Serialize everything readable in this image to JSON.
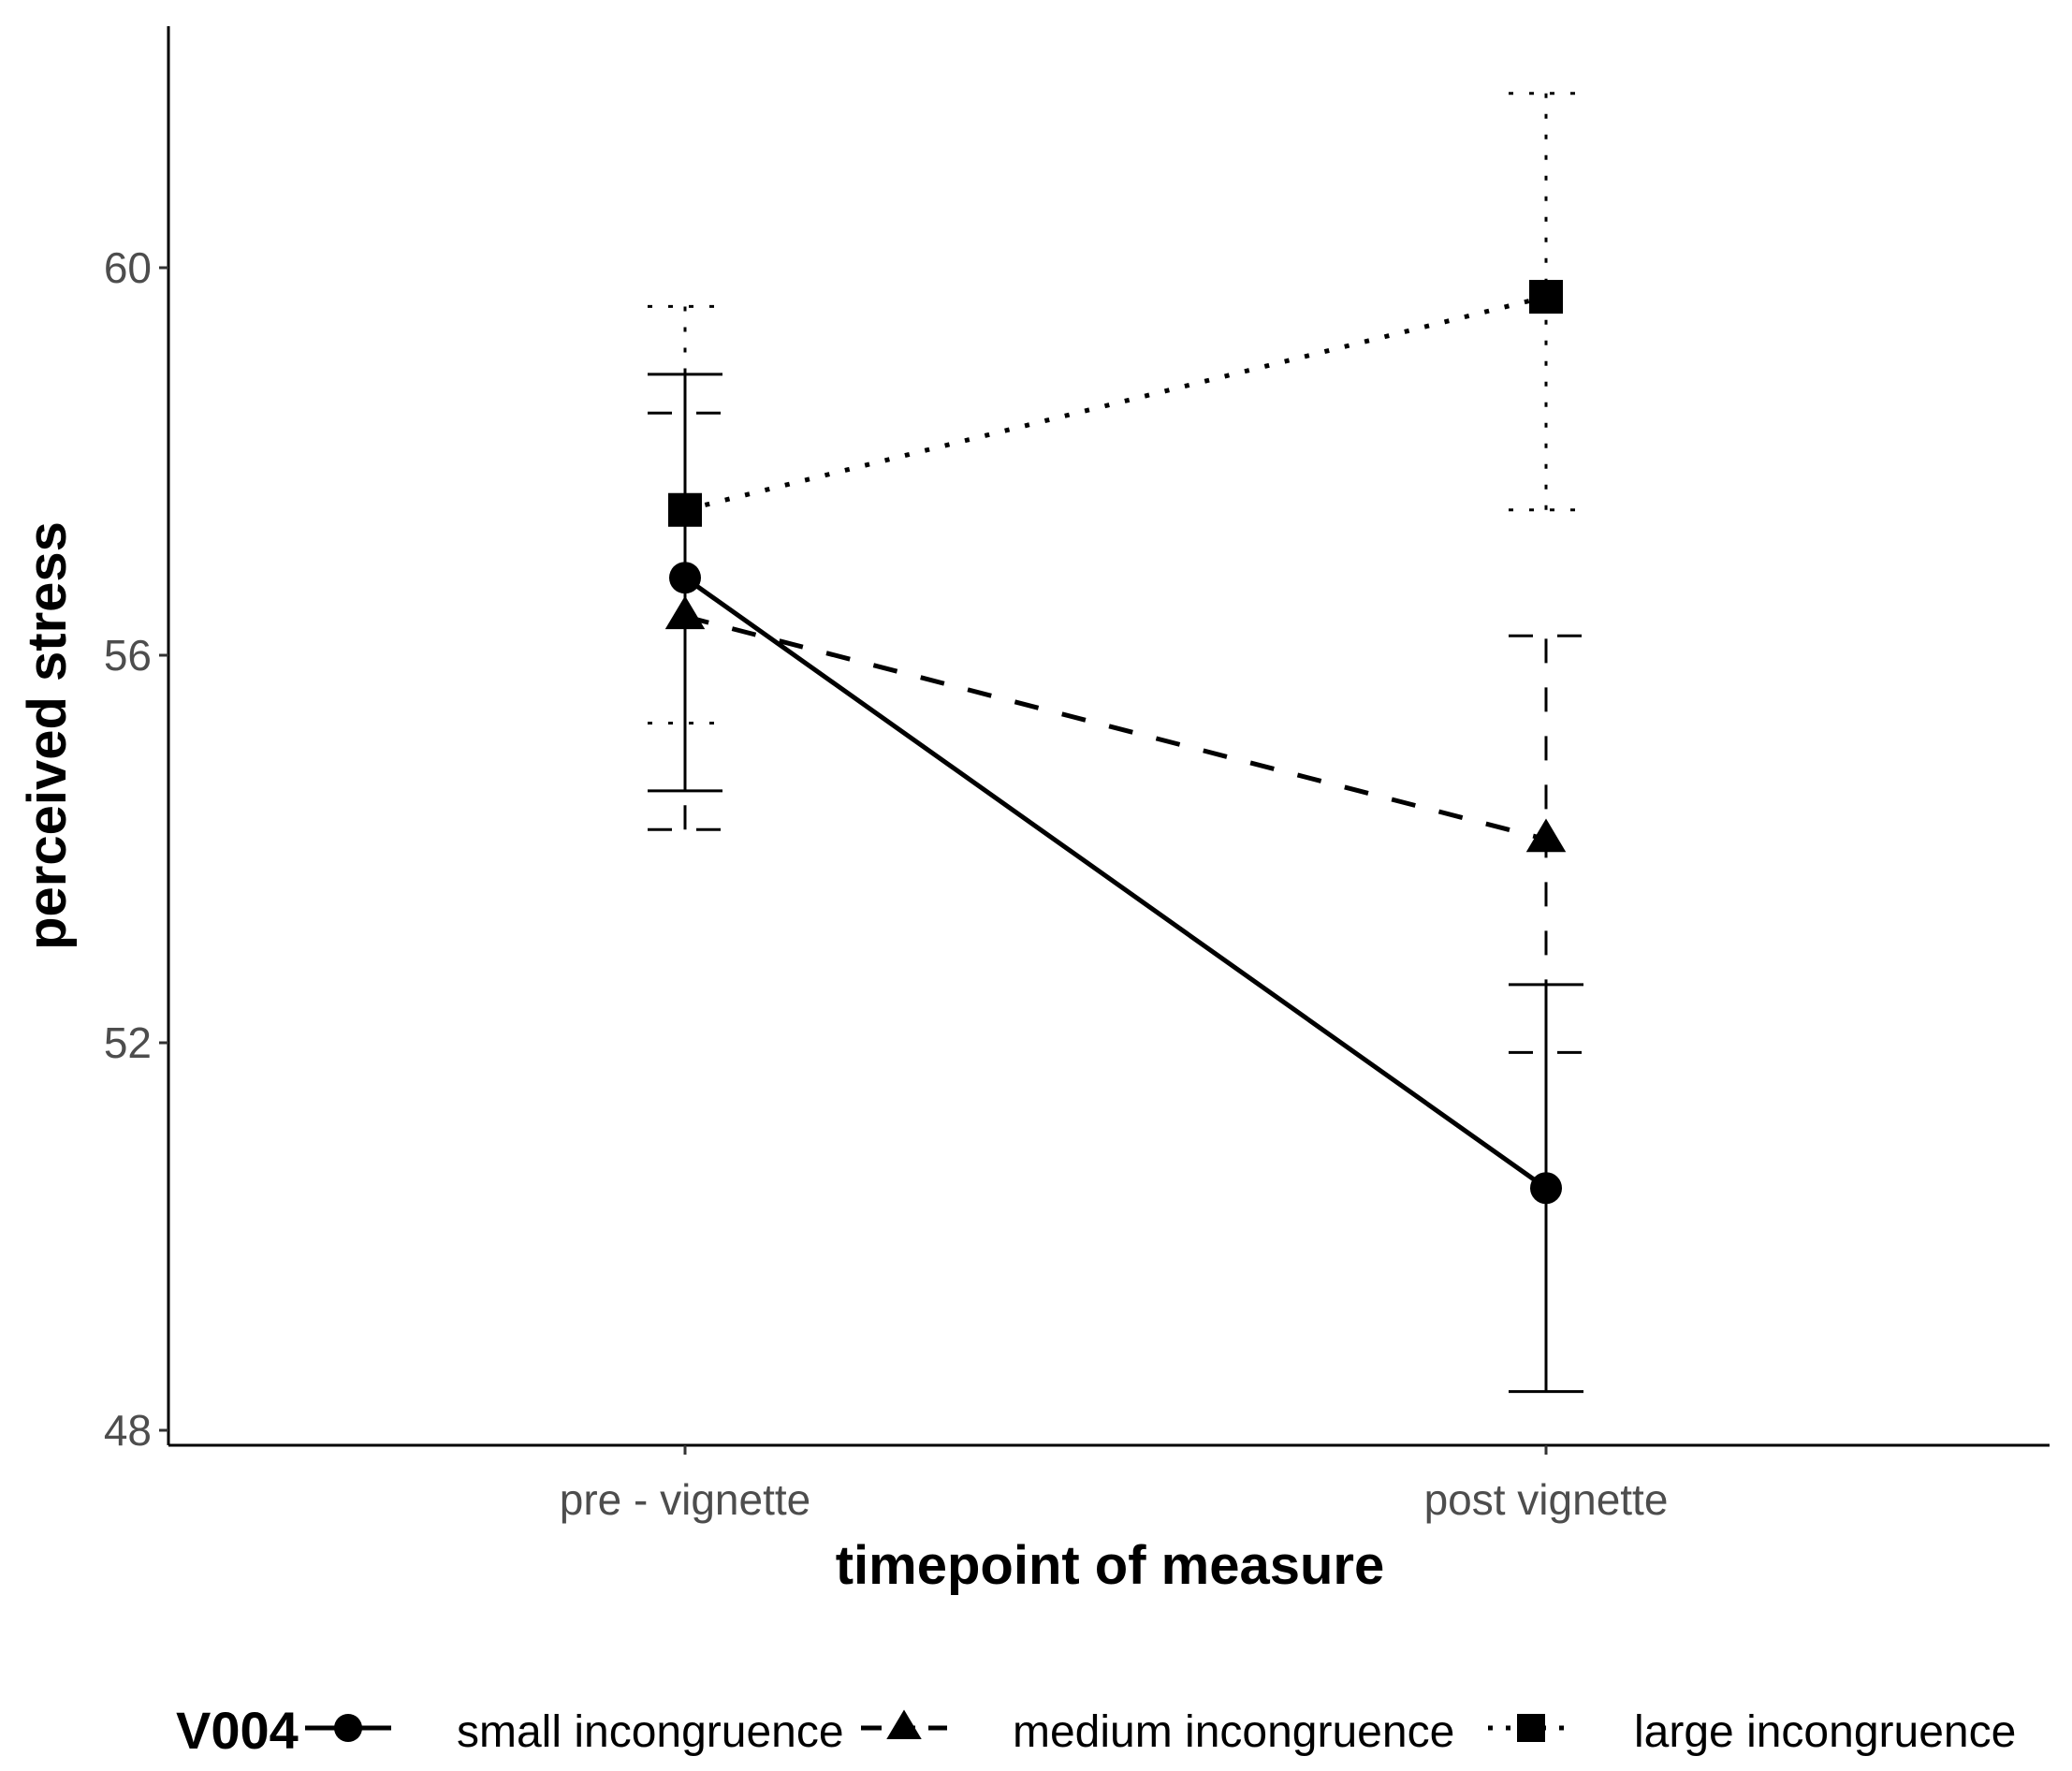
{
  "chart_data": {
    "type": "line",
    "title": "",
    "xlabel": "timepoint of measure",
    "ylabel": "perceived stress",
    "categories": [
      "pre - vignette",
      "post vignette"
    ],
    "ylim": [
      47.8,
      62.6
    ],
    "yticks": [
      48,
      52,
      56,
      60
    ],
    "ytick_labels": [
      "48",
      "52",
      "56",
      "60"
    ],
    "grid": false,
    "legend": {
      "title": "V004",
      "position": "bottom",
      "items": [
        "small incongruence",
        "medium incongruence",
        "large incongruence"
      ]
    },
    "series": [
      {
        "name": "small incongruence",
        "marker": "circle",
        "linestyle": "solid",
        "color": "#000000",
        "values": [
          56.8,
          50.5
        ],
        "lower": [
          54.6,
          48.4
        ],
        "upper": [
          58.9,
          52.6
        ]
      },
      {
        "name": "medium incongruence",
        "marker": "triangle",
        "linestyle": "dashed",
        "color": "#000000",
        "values": [
          56.4,
          54.1
        ],
        "lower": [
          54.2,
          51.9
        ],
        "upper": [
          58.5,
          56.2
        ]
      },
      {
        "name": "large incongruence",
        "marker": "square",
        "linestyle": "dotted",
        "color": "#000000",
        "values": [
          57.5,
          59.7
        ],
        "lower": [
          55.3,
          57.5
        ],
        "upper": [
          59.6,
          61.8
        ]
      }
    ]
  }
}
